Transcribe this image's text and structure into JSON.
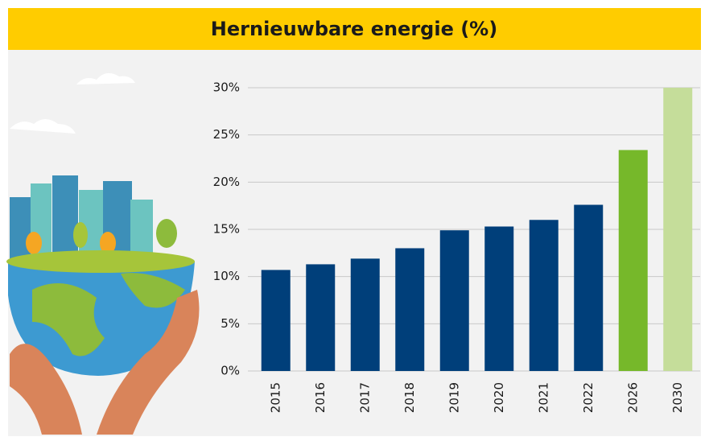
{
  "chart_data": {
    "type": "bar",
    "title": "Hernieuwbare energie (%)",
    "categories": [
      "2015",
      "2016",
      "2017",
      "2018",
      "2019",
      "2020",
      "2021",
      "2022",
      "2026",
      "2030"
    ],
    "values": [
      10.7,
      11.3,
      11.9,
      13.0,
      14.9,
      15.3,
      16.0,
      17.6,
      23.4,
      30.0
    ],
    "colors": [
      "#003f7a",
      "#003f7a",
      "#003f7a",
      "#003f7a",
      "#003f7a",
      "#003f7a",
      "#003f7a",
      "#003f7a",
      "#76b82a",
      "#c5dd9a"
    ],
    "ylim": [
      0,
      30
    ],
    "yticks": [
      {
        "value": 0,
        "label": "0%"
      },
      {
        "value": 5,
        "label": "5%"
      },
      {
        "value": 10,
        "label": "10%"
      },
      {
        "value": 15,
        "label": "15%"
      },
      {
        "value": 20,
        "label": "20%"
      },
      {
        "value": 25,
        "label": "25%"
      },
      {
        "value": 30,
        "label": "30%"
      }
    ],
    "grid": true
  }
}
